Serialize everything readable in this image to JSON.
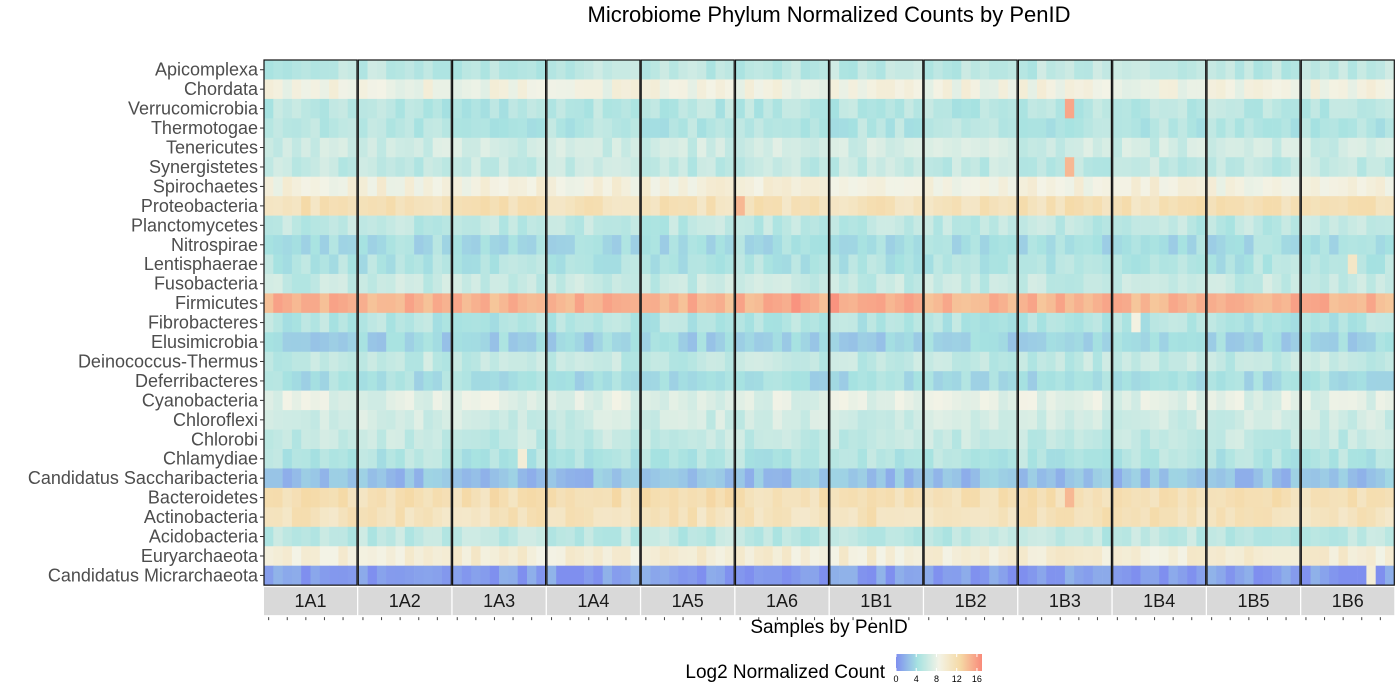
{
  "chart_data": {
    "type": "heatmap",
    "title": "Microbiome Phylum Normalized Counts by PenID",
    "xlabel": "Samples by PenID",
    "legend_title": "Log2 Normalized Count",
    "legend_ticks": [
      "0",
      "4",
      "8",
      "12",
      "16"
    ],
    "color_range": [
      0,
      17
    ],
    "colors": [
      "#7f8fef",
      "#a6e2e1",
      "#f3f3e6",
      "#f5d9a5",
      "#f98a7a"
    ],
    "facets": [
      "1A1",
      "1A2",
      "1A3",
      "1A4",
      "1A5",
      "1A6",
      "1B1",
      "1B2",
      "1B3",
      "1B4",
      "1B5",
      "1B6"
    ],
    "samples_per_facet": 10,
    "rows": [
      {
        "name": "Apicomplexa",
        "base": 5.5
      },
      {
        "name": "Chordata",
        "base": 8.5
      },
      {
        "name": "Verrucomicrobia",
        "base": 5.2
      },
      {
        "name": "Thermotogae",
        "base": 5.0
      },
      {
        "name": "Tenericutes",
        "base": 6.5
      },
      {
        "name": "Synergistetes",
        "base": 5.8
      },
      {
        "name": "Spirochaetes",
        "base": 9.0
      },
      {
        "name": "Proteobacteria",
        "base": 11.5
      },
      {
        "name": "Planctomycetes",
        "base": 5.5
      },
      {
        "name": "Nitrospirae",
        "base": 4.2
      },
      {
        "name": "Lentisphaerae",
        "base": 4.8
      },
      {
        "name": "Fusobacteria",
        "base": 6.0
      },
      {
        "name": "Firmicutes",
        "base": 14.8
      },
      {
        "name": "Fibrobacteres",
        "base": 5.0
      },
      {
        "name": "Elusimicrobia",
        "base": 3.6
      },
      {
        "name": "Deinococcus-Thermus",
        "base": 5.8
      },
      {
        "name": "Deferribacteres",
        "base": 4.2
      },
      {
        "name": "Cyanobacteria",
        "base": 7.5
      },
      {
        "name": "Chloroflexi",
        "base": 6.5
      },
      {
        "name": "Chlorobi",
        "base": 5.8
      },
      {
        "name": "Chlamydiae",
        "base": 5.0
      },
      {
        "name": "Candidatus Saccharibacteria",
        "base": 2.6
      },
      {
        "name": "Bacteroidetes",
        "base": 11.8
      },
      {
        "name": "Actinobacteria",
        "base": 11.3
      },
      {
        "name": "Acidobacteria",
        "base": 5.5
      },
      {
        "name": "Euryarchaeota",
        "base": 9.5
      },
      {
        "name": "Candidatus Micrarchaeota",
        "base": 0.8
      }
    ],
    "highlights": [
      {
        "row": "Verrucomicrobia",
        "facet": "1B3",
        "sample": 5,
        "value": 15.5
      },
      {
        "row": "Synergistetes",
        "facet": "1B3",
        "sample": 5,
        "value": 14.5
      },
      {
        "row": "Firmicutes",
        "facet": "1B1",
        "sample": 0,
        "value": 16.5
      },
      {
        "row": "Firmicutes",
        "facet": "1A6",
        "sample": 6,
        "value": 16.5
      },
      {
        "row": "Proteobacteria",
        "facet": "1A6",
        "sample": 0,
        "value": 14.5
      },
      {
        "row": "Bacteroidetes",
        "facet": "1B3",
        "sample": 5,
        "value": 14.5
      },
      {
        "row": "Chlamydiae",
        "facet": "1A3",
        "sample": 7,
        "value": 9.5
      },
      {
        "row": "Candidatus Micrarchaeota",
        "facet": "1B6",
        "sample": 7,
        "value": 9.5
      },
      {
        "row": "Lentisphaerae",
        "facet": "1B6",
        "sample": 5,
        "value": 10.5
      },
      {
        "row": "Fibrobacteres",
        "facet": "1B4",
        "sample": 2,
        "value": 8.8
      }
    ]
  }
}
